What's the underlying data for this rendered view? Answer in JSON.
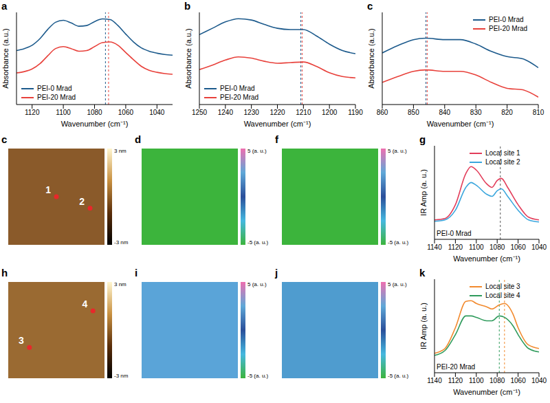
{
  "chart_data": [
    {
      "panel": "a",
      "type": "line",
      "x_label": "Wavenumber (cm⁻¹)",
      "y_label": "Absorbance (a.u.)",
      "xlim": [
        1130,
        1030
      ],
      "xticks": [
        1120,
        1100,
        1080,
        1060,
        1040
      ],
      "ylim": [
        -0.4,
        1
      ],
      "tick_labels": "x",
      "legend": "lower left",
      "x": [
        1130,
        1125,
        1120,
        1115,
        1110,
        1105,
        1100,
        1095,
        1090,
        1085,
        1080,
        1075,
        1070,
        1065,
        1060,
        1055,
        1050,
        1045,
        1040,
        1035,
        1030
      ],
      "series": [
        {
          "name": "PEI-0 Mrad",
          "color": "#1c5a8c",
          "values": [
            0.42,
            0.45,
            0.5,
            0.6,
            0.74,
            0.85,
            0.88,
            0.84,
            0.79,
            0.8,
            0.86,
            0.9,
            0.89,
            0.8,
            0.67,
            0.55,
            0.46,
            0.41,
            0.38,
            0.36,
            0.35
          ]
        },
        {
          "name": "PEI-20 Mrad",
          "color": "#e8413b",
          "values": [
            0.08,
            0.1,
            0.14,
            0.22,
            0.34,
            0.45,
            0.48,
            0.45,
            0.41,
            0.42,
            0.48,
            0.54,
            0.55,
            0.5,
            0.39,
            0.28,
            0.18,
            0.12,
            0.09,
            0.07,
            0.06
          ]
        }
      ],
      "markers": [
        {
          "x": 1073,
          "color": "#1c5a8c"
        },
        {
          "x": 1071,
          "color": "#e8413b"
        }
      ]
    },
    {
      "panel": "b",
      "type": "line",
      "x_label": "Wavenumber (cm⁻¹)",
      "y_label": "Absorbance (a.u.)",
      "xlim": [
        1250,
        1190
      ],
      "xticks": [
        1250,
        1240,
        1230,
        1220,
        1210,
        1200,
        1190
      ],
      "ylim": [
        -0.4,
        1.05
      ],
      "tick_labels": "x",
      "legend": "lower left",
      "x": [
        1250,
        1245,
        1240,
        1235,
        1230,
        1225,
        1220,
        1215,
        1210,
        1205,
        1200,
        1195,
        1190
      ],
      "series": [
        {
          "name": "PEI-0 Mrad",
          "color": "#1c5a8c",
          "values": [
            0.7,
            0.8,
            0.9,
            0.95,
            0.93,
            0.86,
            0.8,
            0.78,
            0.78,
            0.68,
            0.55,
            0.45,
            0.4
          ]
        },
        {
          "name": "PEI-20 Mrad",
          "color": "#e8413b",
          "values": [
            0.15,
            0.22,
            0.3,
            0.35,
            0.33,
            0.28,
            0.25,
            0.26,
            0.27,
            0.2,
            0.1,
            0.04,
            0.02
          ]
        }
      ],
      "markers": [
        {
          "x": 1211,
          "color": "#1c5a8c"
        },
        {
          "x": 1210.5,
          "color": "#e8413b"
        }
      ]
    },
    {
      "panel": "c",
      "type": "line",
      "x_label": "Wavenumber (cm⁻¹)",
      "y_label": "Absorbance (a.u.)",
      "xlim": [
        860,
        810
      ],
      "xticks": [
        860,
        850,
        840,
        830,
        820,
        810
      ],
      "ylim": [
        0,
        1.25
      ],
      "tick_labels": "x",
      "legend": "upper right",
      "x": [
        860,
        855,
        850,
        846,
        840,
        835,
        830,
        825,
        820,
        815,
        810
      ],
      "series": [
        {
          "name": "PEI-0 Mrad",
          "color": "#1c5a8c",
          "values": [
            0.7,
            0.8,
            0.88,
            0.9,
            0.88,
            0.88,
            0.82,
            0.72,
            0.65,
            0.62,
            0.5
          ]
        },
        {
          "name": "PEI-20 Mrad",
          "color": "#e8413b",
          "values": [
            0.3,
            0.38,
            0.45,
            0.47,
            0.45,
            0.45,
            0.4,
            0.3,
            0.22,
            0.2,
            0.1
          ]
        }
      ],
      "markers": [
        {
          "x": 846,
          "color": "#1c5a8c"
        },
        {
          "x": 845.6,
          "color": "#e8413b"
        }
      ]
    },
    {
      "panel": "g",
      "type": "line",
      "x_label": "Wavenumber (cm⁻¹)",
      "y_label": "IR Amp (a. u.)",
      "xlim": [
        1140,
        1040
      ],
      "xticks": [
        1140,
        1120,
        1100,
        1080,
        1060,
        1040
      ],
      "ylim": [
        -0.2,
        1.15
      ],
      "tick_labels": "x",
      "legend": "upper right",
      "x": [
        1140,
        1130,
        1120,
        1110,
        1105,
        1100,
        1090,
        1085,
        1080,
        1076,
        1070,
        1060,
        1050,
        1040
      ],
      "series": [
        {
          "name": "Local site 1",
          "color": "#e23d5a",
          "values": [
            0.08,
            0.1,
            0.3,
            0.75,
            0.85,
            0.8,
            0.6,
            0.55,
            0.65,
            0.68,
            0.55,
            0.3,
            0.12,
            0.08
          ]
        },
        {
          "name": "Local site 2",
          "color": "#3aa6dd",
          "values": [
            0.06,
            0.08,
            0.22,
            0.55,
            0.62,
            0.58,
            0.45,
            0.42,
            0.5,
            0.53,
            0.42,
            0.22,
            0.08,
            0.05
          ]
        }
      ],
      "markers": [
        {
          "x": 1077,
          "color": "#555555"
        }
      ],
      "annotations": [
        {
          "text": "PEI-0 Mrad",
          "x": 1138,
          "y": -0.12
        }
      ]
    },
    {
      "panel": "k",
      "type": "line",
      "x_label": "Wavenumber (cm⁻¹)",
      "y_label": "IR Amp (a. u.)",
      "xlim": [
        1140,
        1040
      ],
      "xticks": [
        1140,
        1120,
        1100,
        1080,
        1060,
        1040
      ],
      "ylim": [
        -0.2,
        1.15
      ],
      "tick_labels": "x",
      "legend": "upper right",
      "x": [
        1140,
        1130,
        1120,
        1110,
        1105,
        1100,
        1090,
        1085,
        1078,
        1073,
        1065,
        1060,
        1050,
        1040
      ],
      "series": [
        {
          "name": "Local site 3",
          "color": "#f28a2e",
          "values": [
            0.08,
            0.15,
            0.45,
            0.83,
            0.84,
            0.8,
            0.75,
            0.72,
            0.78,
            0.8,
            0.65,
            0.45,
            0.2,
            0.15
          ]
        },
        {
          "name": "Local site 4",
          "color": "#2f9b5c",
          "values": [
            0.05,
            0.12,
            0.35,
            0.62,
            0.62,
            0.6,
            0.55,
            0.55,
            0.62,
            0.6,
            0.48,
            0.35,
            0.15,
            0.1
          ]
        }
      ],
      "markers": [
        {
          "x": 1078,
          "color": "#2f9b5c"
        },
        {
          "x": 1073,
          "color": "#f28a2e"
        }
      ],
      "annotations": [
        {
          "text": "PEI-20 Mrad",
          "x": 1138,
          "y": -0.12
        }
      ]
    }
  ],
  "images": [
    {
      "panel": "c",
      "color": "#8a5a2a",
      "sites": [
        "1",
        "2"
      ],
      "colorbar": {
        "ylim": [
          -3,
          3
        ],
        "ticks": [
          {
            "value": 3,
            "label": "3 nm"
          },
          {
            "value": -3,
            "label": "-3 nm"
          }
        ],
        "colors": [
          "#fff6d0",
          "#c89040",
          "#5a2e0a",
          "#000000"
        ]
      }
    },
    {
      "panel": "d",
      "color": "#3cb43c",
      "sites": [],
      "colorbar": {
        "ylim": [
          -5,
          5
        ],
        "ticks": [
          {
            "value": 5,
            "label": "5 (a. u.)"
          },
          {
            "value": -5,
            "label": "-5 (a. u.)"
          }
        ],
        "colors": [
          "#ee6fb0",
          "#5fa8d8",
          "#2a4f9a",
          "#45b8e0",
          "#3cb43c"
        ]
      }
    },
    {
      "panel": "f",
      "color": "#3cb43c",
      "sites": [],
      "colorbar": {
        "ylim": [
          -5,
          5
        ],
        "ticks": [
          {
            "value": 5,
            "label": "5 (a. u.)"
          },
          {
            "value": -5,
            "label": "-5 (a. u.)"
          }
        ],
        "colors": [
          "#ee6fb0",
          "#5fa8d8",
          "#2a4f9a",
          "#45b8e0",
          "#3cb43c"
        ]
      }
    },
    {
      "panel": "h",
      "color": "#9a6a32",
      "sites": [
        "3",
        "4"
      ],
      "colorbar": {
        "ylim": [
          -3,
          3
        ],
        "ticks": [
          {
            "value": 3,
            "label": "3 nm"
          },
          {
            "value": -3,
            "label": "-3 nm"
          }
        ],
        "colors": [
          "#fff6d0",
          "#c89040",
          "#5a2e0a",
          "#000000"
        ]
      }
    },
    {
      "panel": "i",
      "color": "#5aa4d8",
      "sites": [],
      "colorbar": {
        "ylim": [
          -5,
          5
        ],
        "ticks": [
          {
            "value": 5,
            "label": "5 (a. u.)"
          },
          {
            "value": -5,
            "label": "-5 (a. u.)"
          }
        ],
        "colors": [
          "#ee6fb0",
          "#5fa8d8",
          "#2a4f9a",
          "#45b8e0",
          "#3cb43c"
        ]
      }
    },
    {
      "panel": "j",
      "color": "#4f9ccf",
      "sites": [],
      "colorbar": {
        "ylim": [
          -5,
          5
        ],
        "ticks": [
          {
            "value": 5,
            "label": "5 (a. u.)"
          },
          {
            "value": -5,
            "label": "-5 (a. u.)"
          }
        ],
        "colors": [
          "#ee6fb0",
          "#5fa8d8",
          "#2a4f9a",
          "#45b8e0",
          "#3cb43c"
        ]
      }
    }
  ]
}
